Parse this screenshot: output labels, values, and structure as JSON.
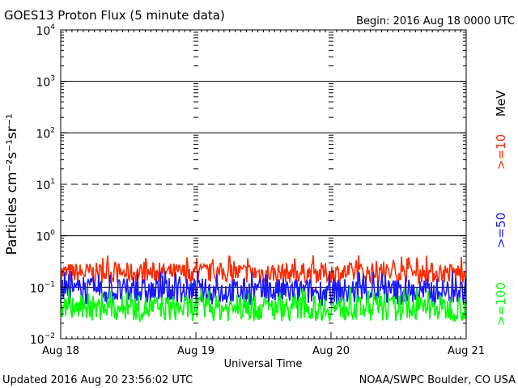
{
  "chart_data": {
    "type": "line",
    "title": "GOES13 Proton Flux (5 minute data)",
    "begin_label": "Begin: 2016 Aug 18 0000 UTC",
    "xlabel": "Universal Time",
    "ylabel": "Particles cm⁻²s⁻¹sr⁻¹",
    "yscale": "log",
    "ylim": [
      0.01,
      10000
    ],
    "x_range": [
      "2016-08-18",
      "2016-08-21"
    ],
    "x_ticks": [
      "Aug 18",
      "Aug 19",
      "Aug 20",
      "Aug 21"
    ],
    "y_tick_base": "10",
    "y_tick_exponents": [
      "4",
      "3",
      "2",
      "1",
      "0",
      "−1",
      "−2"
    ],
    "reference_lines": [
      {
        "value": 10000,
        "style": "solid"
      },
      {
        "value": 1000,
        "style": "solid"
      },
      {
        "value": 100,
        "style": "solid"
      },
      {
        "value": 10,
        "style": "dashed"
      },
      {
        "value": 1,
        "style": "solid"
      },
      {
        "value": 0.1,
        "style": "solid"
      }
    ],
    "series": [
      {
        "name": ">=10",
        "color": "#ff2a00",
        "typical_range": [
          0.12,
          0.3
        ]
      },
      {
        "name": ">=50",
        "color": "#1a1aff",
        "typical_range": [
          0.045,
          0.15
        ]
      },
      {
        "name": ">=100",
        "color": "#00ff00",
        "typical_range": [
          0.022,
          0.07
        ]
      }
    ],
    "unit_label": "MeV"
  },
  "footer": {
    "updated": "Updated 2016 Aug 20 23:56:02 UTC",
    "source": "NOAA/SWPC Boulder, CO USA"
  }
}
